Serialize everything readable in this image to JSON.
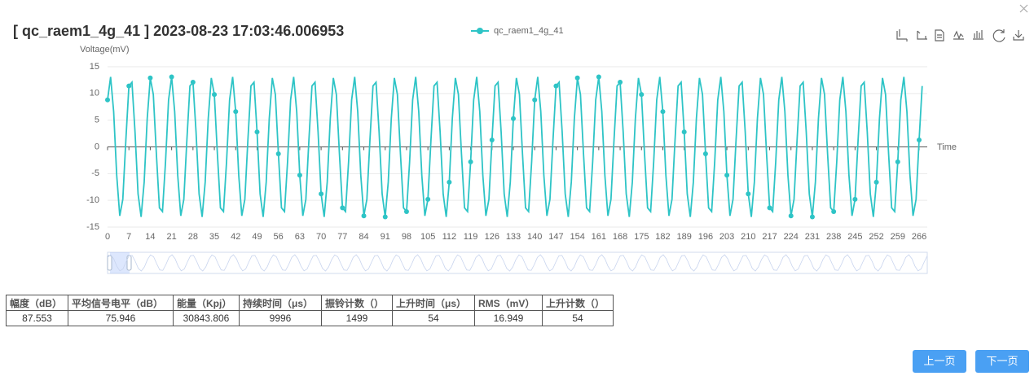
{
  "chart_data": {
    "type": "line",
    "title": "[ qc_raem1_4g_41 ] 2023-08-23 17:03:46.006953",
    "y_label": "Voltage(mV)",
    "x_label": "Time",
    "x": [
      0,
      1,
      2,
      3,
      4,
      5,
      6,
      7,
      8,
      9,
      10,
      11,
      12,
      13,
      14,
      15,
      16,
      17,
      18,
      19,
      20,
      21,
      22,
      23,
      24,
      25,
      26,
      27,
      28,
      29,
      30,
      31,
      32,
      33,
      34,
      35,
      36,
      37,
      38,
      39,
      40,
      41,
      42,
      43,
      44,
      45,
      46,
      47,
      48,
      49,
      50,
      51,
      52,
      53,
      54,
      55,
      56,
      57,
      58,
      59,
      60,
      61,
      62,
      63,
      64,
      65,
      66,
      67,
      68,
      69,
      70,
      71,
      72,
      73,
      74,
      75,
      76,
      77,
      78,
      79,
      80,
      81,
      82,
      83,
      84,
      85,
      86,
      87,
      88,
      89,
      90,
      91,
      92,
      93,
      94,
      95,
      96,
      97,
      98,
      99,
      100,
      101,
      102,
      103,
      104,
      105,
      106,
      107,
      108,
      109,
      110,
      111,
      112,
      113,
      114,
      115,
      116,
      117,
      118,
      119,
      120,
      121,
      122,
      123,
      124,
      125,
      126,
      127,
      128,
      129,
      130,
      131,
      132,
      133,
      134,
      135,
      136,
      137,
      138,
      139,
      140,
      141,
      142,
      143,
      144,
      145,
      146,
      147,
      148,
      149,
      150,
      151,
      152,
      153,
      154,
      155,
      156,
      157,
      158,
      159,
      160,
      161,
      162,
      163,
      164,
      165,
      166,
      167,
      168,
      169,
      170,
      171,
      172,
      173,
      174,
      175,
      176,
      177,
      178,
      179,
      180,
      181,
      182,
      183,
      184,
      185,
      186,
      187,
      188,
      189,
      190,
      191,
      192,
      193,
      194,
      195,
      196,
      197,
      198,
      199,
      200,
      201,
      202,
      203,
      204,
      205,
      206,
      207,
      208,
      209,
      210,
      211,
      212,
      213,
      214,
      215,
      216,
      217,
      218,
      219,
      220,
      221,
      222,
      223,
      224,
      225,
      226,
      227,
      228,
      229,
      230,
      231,
      232,
      233,
      234,
      235,
      236,
      237,
      238,
      239,
      240,
      241,
      242,
      243,
      244,
      245,
      246,
      247,
      248,
      249,
      250,
      251,
      252,
      253,
      254,
      255,
      256,
      257,
      258,
      259,
      260,
      261,
      262,
      263,
      264,
      265,
      266,
      267
    ],
    "series": [
      {
        "name": "qc_raem1_4g_41",
        "color": "#2ec4c6",
        "values": [
          8.8,
          13.1,
          6.6,
          -5.3,
          -12.9,
          -9.8,
          1.3,
          11.4,
          12.1,
          2.8,
          -8.8,
          -13.1,
          -6.6,
          5.3,
          12.9,
          9.8,
          -1.3,
          -11.4,
          -12.1,
          -2.8,
          8.8,
          13.1,
          6.6,
          -5.3,
          -12.9,
          -9.8,
          1.3,
          11.4,
          12.1,
          2.8,
          -8.8,
          -13.1,
          -6.6,
          5.3,
          12.9,
          9.8,
          -1.3,
          -11.4,
          -12.1,
          -2.8,
          8.8,
          13.1,
          6.6,
          -5.3,
          -12.9,
          -9.8,
          1.3,
          11.4,
          12.1,
          2.8,
          -8.8,
          -13.1,
          -6.6,
          5.3,
          12.9,
          9.8,
          -1.3,
          -11.4,
          -12.1,
          -2.8,
          8.8,
          13.1,
          6.6,
          -5.3,
          -12.9,
          -9.8,
          1.3,
          11.4,
          12.1,
          2.8,
          -8.8,
          -13.1,
          -6.6,
          5.3,
          12.9,
          9.8,
          -1.3,
          -11.4,
          -12.1,
          -2.8,
          8.8,
          13.1,
          6.6,
          -5.3,
          -12.9,
          -9.8,
          1.3,
          11.4,
          12.1,
          2.8,
          -8.8,
          -13.1,
          -6.6,
          5.3,
          12.9,
          9.8,
          -1.3,
          -11.4,
          -12.1,
          -2.8,
          8.8,
          13.1,
          6.6,
          -5.3,
          -12.9,
          -9.8,
          1.3,
          11.4,
          12.1,
          2.8,
          -8.8,
          -13.1,
          -6.6,
          5.3,
          12.9,
          9.8,
          -1.3,
          -11.4,
          -12.1,
          -2.8,
          8.8,
          13.1,
          6.6,
          -5.3,
          -12.9,
          -9.8,
          1.3,
          11.4,
          12.1,
          2.8,
          -8.8,
          -13.1,
          -6.6,
          5.3,
          12.9,
          9.8,
          -1.3,
          -11.4,
          -12.1,
          -2.8,
          8.8,
          13.1,
          6.6,
          -5.3,
          -12.9,
          -9.8,
          1.3,
          11.4,
          12.1,
          2.8,
          -8.8,
          -13.1,
          -6.6,
          5.3,
          12.9,
          9.8,
          -1.3,
          -11.4,
          -12.1,
          -2.8,
          8.8,
          13.1,
          6.6,
          -5.3,
          -12.9,
          -9.8,
          1.3,
          11.4,
          12.1,
          2.8,
          -8.8,
          -13.1,
          -6.6,
          5.3,
          12.9,
          9.8,
          -1.3,
          -11.4,
          -12.1,
          -2.8,
          8.8,
          13.1,
          6.6,
          -5.3,
          -12.9,
          -9.8,
          1.3,
          11.4,
          12.1,
          2.8,
          -8.8,
          -13.1,
          -6.6,
          5.3,
          12.9,
          9.8,
          -1.3,
          -11.4,
          -12.1,
          -2.8,
          8.8,
          13.1,
          6.6,
          -5.3,
          -12.9,
          -9.8,
          1.3,
          11.4,
          12.1,
          2.8,
          -8.8,
          -13.1,
          -6.6,
          5.3,
          12.9,
          9.8,
          -1.3,
          -11.4,
          -12.1,
          -2.8,
          8.8,
          13.1,
          6.6,
          -5.3,
          -12.9,
          -9.8,
          1.3,
          11.4,
          12.1,
          2.8,
          -8.8,
          -13.1,
          -6.6,
          5.3,
          12.9,
          9.8,
          -1.3,
          -11.4,
          -12.1,
          -2.8,
          8.8,
          13.1,
          6.6,
          -5.3,
          -12.9,
          -9.8,
          1.3,
          11.4,
          12.1,
          2.8,
          -8.8,
          -13.1,
          -6.6,
          5.3,
          12.9,
          9.8,
          -1.3,
          -11.4,
          -12.1,
          -2.8,
          8.8,
          13.1,
          6.6,
          -5.3,
          -12.9,
          -9.8,
          1.3,
          11.4
        ]
      }
    ],
    "xlim": [
      0,
      268
    ],
    "xticks": [
      0,
      7,
      14,
      21,
      28,
      35,
      42,
      49,
      56,
      63,
      70,
      77,
      84,
      91,
      98,
      105,
      112,
      119,
      126,
      133,
      140,
      147,
      154,
      161,
      168,
      175,
      182,
      189,
      196,
      203,
      210,
      217,
      224,
      231,
      238,
      245,
      252,
      259,
      266
    ],
    "ylim": [
      -15,
      15
    ],
    "yticks": [
      -15,
      -10,
      -5,
      0,
      5,
      10,
      15
    ],
    "grid": true
  },
  "table": {
    "headers": [
      "幅度（dB）",
      "平均信号电平（dB）",
      "能量（Kpj）",
      "持续时间（μs）",
      "振铃计数（）",
      "上升时间（μs）",
      "RMS（mV）",
      "上升计数（）"
    ],
    "row": [
      "87.553",
      "75.946",
      "30843.806",
      "9996",
      "1499",
      "54",
      "16.949",
      "54"
    ]
  },
  "buttons": {
    "prev": "上一页",
    "next": "下一页"
  }
}
